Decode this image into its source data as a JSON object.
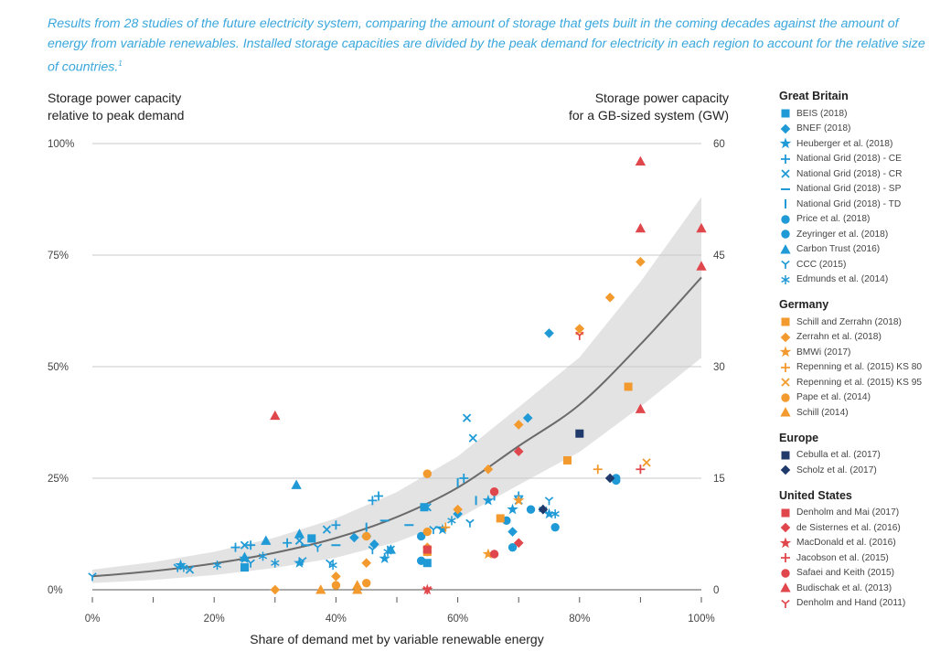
{
  "caption": "Results from 28 studies of the future electricity system, comparing the amount of storage that gets built in the coming decades against the amount of energy from variable renewables. Installed storage capacities are divided by the peak demand for electricity in each region to account for the relative size of countries.",
  "caption_footnote": "1",
  "colors": {
    "gb": "#1f9ad6",
    "de": "#f39a2e",
    "eu": "#1f3a6b",
    "us": "#e0474c",
    "trend": "#6b6b6b",
    "band": "#e3e3e3",
    "grid": "#c8c8c8"
  },
  "legend": {
    "groups": [
      {
        "title": "Great Britain",
        "color": "#1f9ad6",
        "items": [
          {
            "label": "BEIS (2018)",
            "marker": "square"
          },
          {
            "label": "BNEF (2018)",
            "marker": "diamond"
          },
          {
            "label": "Heuberger et al. (2018)",
            "marker": "star"
          },
          {
            "label": "National Grid (2018) - CE",
            "marker": "plus"
          },
          {
            "label": "National Grid (2018) - CR",
            "marker": "cross"
          },
          {
            "label": "National Grid (2018) - SP",
            "marker": "hbar"
          },
          {
            "label": "National Grid (2018) - TD",
            "marker": "vbar"
          },
          {
            "label": "Price et al. (2018)",
            "marker": "circle"
          },
          {
            "label": "Zeyringer et al. (2018)",
            "marker": "circle"
          },
          {
            "label": "Carbon Trust (2016)",
            "marker": "triangle"
          },
          {
            "label": "CCC (2015)",
            "marker": "tri"
          },
          {
            "label": "Edmunds et al. (2014)",
            "marker": "asterisk"
          }
        ]
      },
      {
        "title": "Germany",
        "color": "#f39a2e",
        "items": [
          {
            "label": "Schill and Zerrahn (2018)",
            "marker": "square"
          },
          {
            "label": "Zerrahn et al. (2018)",
            "marker": "diamond"
          },
          {
            "label": "BMWi (2017)",
            "marker": "star"
          },
          {
            "label": "Repenning et al. (2015) KS 80",
            "marker": "plus"
          },
          {
            "label": "Repenning et al. (2015) KS 95",
            "marker": "cross"
          },
          {
            "label": "Pape et al. (2014)",
            "marker": "circle"
          },
          {
            "label": "Schill (2014)",
            "marker": "triangle"
          }
        ]
      },
      {
        "title": "Europe",
        "color": "#1f3a6b",
        "items": [
          {
            "label": "Cebulla et al. (2017)",
            "marker": "square"
          },
          {
            "label": "Scholz et al. (2017)",
            "marker": "diamond"
          }
        ]
      },
      {
        "title": "United States",
        "color": "#e0474c",
        "items": [
          {
            "label": "Denholm and Mai (2017)",
            "marker": "square"
          },
          {
            "label": "de Sisternes et al. (2016)",
            "marker": "diamond"
          },
          {
            "label": "MacDonald et al. (2016)",
            "marker": "star"
          },
          {
            "label": "Jacobson et al. (2015)",
            "marker": "plus"
          },
          {
            "label": "Safaei and Keith (2015)",
            "marker": "circle"
          },
          {
            "label": "Budischak et al. (2013)",
            "marker": "triangle"
          },
          {
            "label": "Denholm and Hand (2011)",
            "marker": "tri"
          }
        ]
      }
    ]
  },
  "chart_data": {
    "type": "scatter",
    "xlabel": "Share of demand met by variable renewable energy",
    "ylabel_left": "Storage power capacity relative to peak demand",
    "ylabel_right": "Storage power capacity for a GB-sized system (GW)",
    "ylabel_left_lines": [
      "Storage power capacity",
      "relative to peak demand"
    ],
    "ylabel_right_lines": [
      "Storage power capacity",
      "for a GB-sized system (GW)"
    ],
    "xlim": [
      0,
      100
    ],
    "ylim": [
      0,
      100
    ],
    "x_ticks": [
      {
        "value": 0,
        "label": "0%"
      },
      {
        "value": 20,
        "label": "20%"
      },
      {
        "value": 40,
        "label": "40%"
      },
      {
        "value": 60,
        "label": "60%"
      },
      {
        "value": 80,
        "label": "80%"
      },
      {
        "value": 100,
        "label": "100%"
      }
    ],
    "x_minor_ticks": [
      10,
      30,
      50,
      70,
      90
    ],
    "y_ticks_left": [
      {
        "value": 0,
        "label": "0%"
      },
      {
        "value": 25,
        "label": "25%"
      },
      {
        "value": 50,
        "label": "50%"
      },
      {
        "value": 75,
        "label": "75%"
      },
      {
        "value": 100,
        "label": "100%"
      }
    ],
    "y_ticks_right": [
      {
        "value": 0,
        "label": "0"
      },
      {
        "value": 15,
        "label": "15"
      },
      {
        "value": 30,
        "label": "30"
      },
      {
        "value": 45,
        "label": "45"
      },
      {
        "value": 60,
        "label": "60"
      }
    ],
    "trend": {
      "x": [
        0,
        10,
        20,
        30,
        40,
        50,
        60,
        70,
        80,
        90,
        100
      ],
      "y": [
        3,
        4.2,
        5.9,
        8.3,
        11.6,
        16.3,
        22.9,
        32.2,
        41.5,
        55,
        70
      ],
      "band_half_width": [
        1.5,
        2,
        2.6,
        3.4,
        4.4,
        5.6,
        7,
        8.7,
        10.6,
        14,
        18
      ]
    },
    "series": [
      {
        "group": "Great Britain",
        "name": "BEIS (2018)",
        "marker": "square",
        "points": [
          [
            25,
            5
          ],
          [
            36,
            11.5
          ],
          [
            54.5,
            18.5
          ],
          [
            55,
            6
          ]
        ]
      },
      {
        "group": "Great Britain",
        "name": "BNEF (2018)",
        "marker": "diamond",
        "points": [
          [
            43,
            11.7
          ],
          [
            46.3,
            10.2
          ],
          [
            60,
            17
          ],
          [
            69,
            13
          ],
          [
            71.5,
            38.5
          ],
          [
            75,
            57.5
          ]
        ]
      },
      {
        "group": "Great Britain",
        "name": "Heuberger et al. (2018)",
        "marker": "star",
        "points": [
          [
            14.5,
            5.5
          ],
          [
            25,
            7
          ],
          [
            34,
            6
          ],
          [
            48,
            7
          ],
          [
            57.5,
            13.5
          ],
          [
            65,
            20
          ],
          [
            69,
            18
          ],
          [
            75,
            17
          ]
        ]
      },
      {
        "group": "Great Britain",
        "name": "National Grid (2018) - CE",
        "marker": "plus",
        "points": [
          [
            23.5,
            9.5
          ],
          [
            26,
            10
          ],
          [
            32,
            10.5
          ],
          [
            40,
            14.5
          ],
          [
            46,
            20
          ],
          [
            47,
            21
          ],
          [
            61,
            25
          ],
          [
            70,
            21
          ]
        ]
      },
      {
        "group": "Great Britain",
        "name": "National Grid (2018) - CR",
        "marker": "cross",
        "points": [
          [
            16,
            4.5
          ],
          [
            25,
            10
          ],
          [
            34,
            11
          ],
          [
            38.5,
            13.5
          ],
          [
            49,
            9
          ],
          [
            55,
            18.5
          ],
          [
            61.5,
            38.5
          ],
          [
            62.5,
            34
          ],
          [
            70,
            20
          ]
        ]
      },
      {
        "group": "Great Britain",
        "name": "National Grid (2018) - SP",
        "marker": "hbar",
        "points": [
          [
            35,
            10
          ],
          [
            40,
            10
          ],
          [
            45,
            12
          ],
          [
            48,
            15.5
          ],
          [
            52,
            14.5
          ],
          [
            57,
            14
          ]
        ]
      },
      {
        "group": "Great Britain",
        "name": "National Grid (2018) - TD",
        "marker": "vbar",
        "points": [
          [
            45,
            14
          ],
          [
            60,
            24
          ],
          [
            63,
            20
          ],
          [
            66,
            21
          ]
        ]
      },
      {
        "group": "Great Britain",
        "name": "Price et al. (2018)",
        "marker": "circle",
        "points": [
          [
            54,
            12
          ],
          [
            55,
            8.5
          ],
          [
            69,
            9.5
          ],
          [
            86,
            24.5
          ]
        ]
      },
      {
        "group": "Great Britain",
        "name": "Zeyringer et al. (2018)",
        "marker": "circle",
        "points": [
          [
            54,
            6.5
          ],
          [
            68,
            15.5
          ],
          [
            72,
            18
          ],
          [
            76,
            14
          ],
          [
            86,
            25
          ]
        ]
      },
      {
        "group": "Great Britain",
        "name": "Carbon Trust (2016)",
        "marker": "triangle",
        "points": [
          [
            25,
            7.3
          ],
          [
            28.5,
            11
          ],
          [
            33.5,
            23.5
          ],
          [
            34,
            12.5
          ],
          [
            49,
            9
          ]
        ]
      },
      {
        "group": "Great Britain",
        "name": "CCC (2015)",
        "marker": "tri",
        "points": [
          [
            0,
            3
          ],
          [
            14,
            5
          ],
          [
            26,
            6
          ],
          [
            34.5,
            6.5
          ],
          [
            37,
            9.5
          ],
          [
            39,
            6
          ],
          [
            46,
            9
          ],
          [
            56,
            13.5
          ],
          [
            62,
            15
          ],
          [
            75,
            20
          ]
        ]
      },
      {
        "group": "Great Britain",
        "name": "Edmunds et al. (2014)",
        "marker": "asterisk",
        "points": [
          [
            15,
            5
          ],
          [
            20.5,
            5.5
          ],
          [
            28,
            7.5
          ],
          [
            30,
            6
          ],
          [
            39.5,
            5.5
          ],
          [
            48.5,
            8.5
          ],
          [
            59,
            15.5
          ],
          [
            74,
            18
          ],
          [
            76,
            17
          ]
        ]
      },
      {
        "group": "Germany",
        "name": "Schill and Zerrahn (2018)",
        "marker": "square",
        "points": [
          [
            55,
            8.5
          ],
          [
            67,
            16
          ],
          [
            78,
            29
          ],
          [
            88,
            45.5
          ]
        ]
      },
      {
        "group": "Germany",
        "name": "Zerrahn et al. (2018)",
        "marker": "diamond",
        "points": [
          [
            30,
            0
          ],
          [
            40,
            3
          ],
          [
            45,
            6
          ],
          [
            55,
            9.5
          ],
          [
            60,
            18
          ],
          [
            65,
            27
          ],
          [
            70,
            37
          ],
          [
            80,
            58.5
          ],
          [
            85,
            65.5
          ],
          [
            90,
            73.5
          ]
        ]
      },
      {
        "group": "Germany",
        "name": "BMWi (2017)",
        "marker": "star",
        "points": [
          [
            65,
            8
          ],
          [
            70,
            20
          ]
        ]
      },
      {
        "group": "Germany",
        "name": "Repenning et al. (2015) KS 80",
        "marker": "plus",
        "points": [
          [
            58,
            14
          ],
          [
            83,
            27
          ]
        ]
      },
      {
        "group": "Germany",
        "name": "Repenning et al. (2015) KS 95",
        "marker": "cross",
        "points": [
          [
            80,
            58
          ],
          [
            91,
            28.5
          ]
        ]
      },
      {
        "group": "Germany",
        "name": "Pape et al. (2014)",
        "marker": "circle",
        "points": [
          [
            40,
            1
          ],
          [
            45,
            12
          ],
          [
            45,
            1.5
          ],
          [
            55,
            13
          ],
          [
            55,
            26
          ]
        ]
      },
      {
        "group": "Germany",
        "name": "Schill (2014)",
        "marker": "triangle",
        "points": [
          [
            37.5,
            0
          ],
          [
            43.5,
            0
          ],
          [
            43.5,
            1
          ]
        ]
      },
      {
        "group": "Europe",
        "name": "Cebulla et al. (2017)",
        "marker": "square",
        "points": [
          [
            80,
            35
          ]
        ]
      },
      {
        "group": "Europe",
        "name": "Scholz et al. (2017)",
        "marker": "diamond",
        "points": [
          [
            74,
            18
          ],
          [
            85,
            25
          ]
        ]
      },
      {
        "group": "United States",
        "name": "Denholm and Mai (2017)",
        "marker": "square",
        "points": [
          [
            55,
            9
          ]
        ]
      },
      {
        "group": "United States",
        "name": "de Sisternes et al. (2016)",
        "marker": "diamond",
        "points": [
          [
            70,
            31
          ],
          [
            70,
            10.5
          ]
        ]
      },
      {
        "group": "United States",
        "name": "MacDonald et al. (2016)",
        "marker": "star",
        "points": [
          [
            55,
            0
          ]
        ]
      },
      {
        "group": "United States",
        "name": "Jacobson et al. (2015)",
        "marker": "plus",
        "points": [
          [
            90,
            27
          ]
        ]
      },
      {
        "group": "United States",
        "name": "Safaei and Keith (2015)",
        "marker": "circle",
        "points": [
          [
            66,
            22
          ],
          [
            66,
            8
          ]
        ]
      },
      {
        "group": "United States",
        "name": "Budischak et al. (2013)",
        "marker": "triangle",
        "points": [
          [
            30,
            39
          ],
          [
            90,
            96
          ],
          [
            90,
            81
          ],
          [
            90,
            40.5
          ],
          [
            100,
            81
          ],
          [
            100,
            72.5
          ]
        ]
      },
      {
        "group": "United States",
        "name": "Denholm and Hand (2011)",
        "marker": "tri",
        "points": [
          [
            55,
            0
          ],
          [
            80,
            57
          ]
        ]
      }
    ]
  }
}
